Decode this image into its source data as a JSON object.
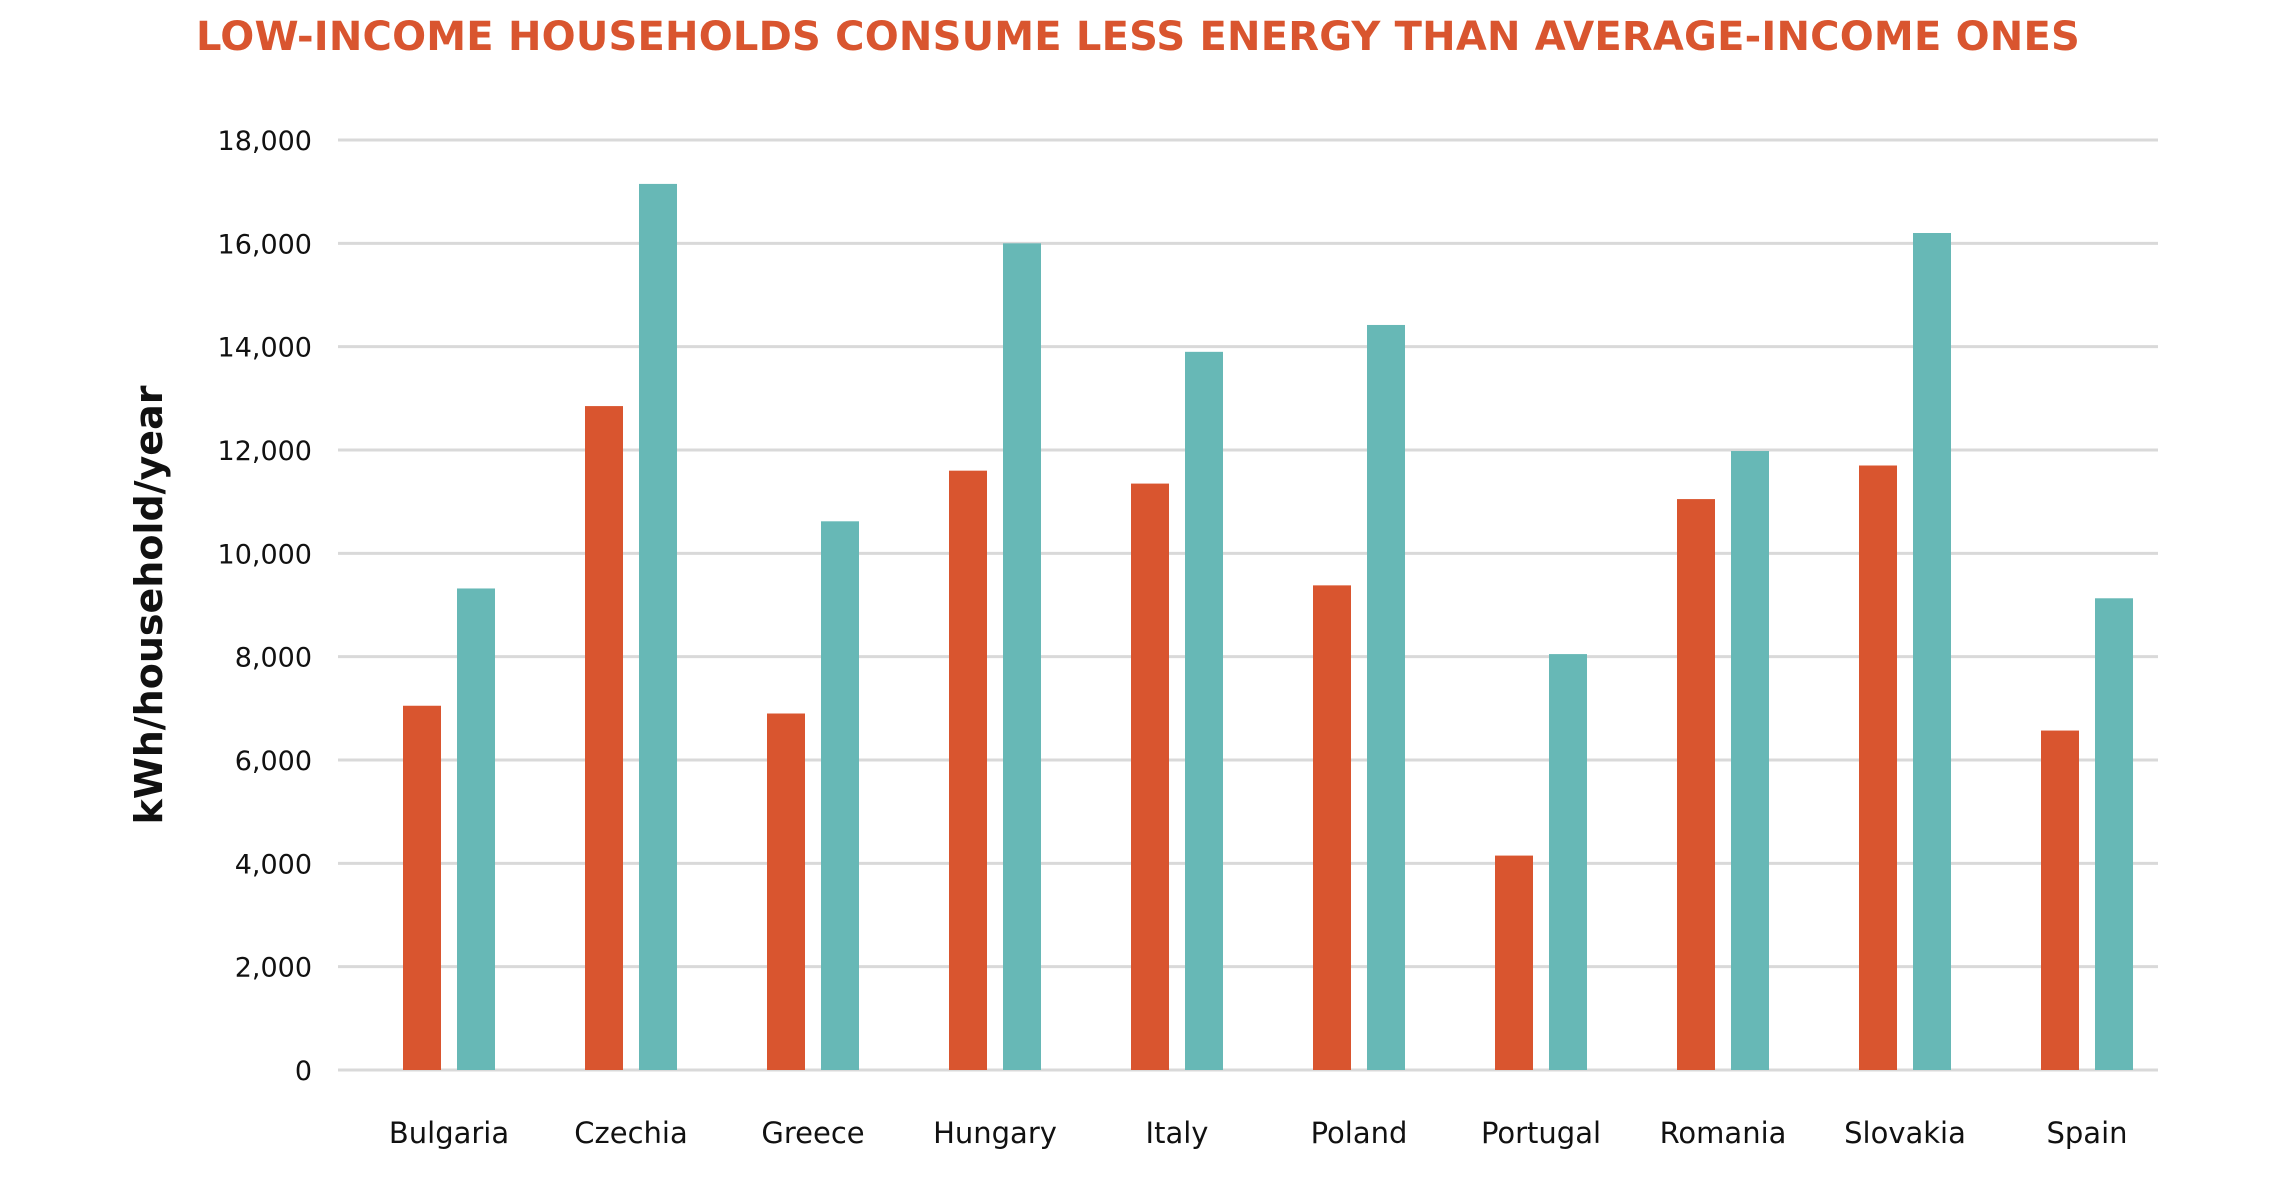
{
  "chart_data": {
    "type": "bar",
    "title": "LOW-INCOME HOUSEHOLDS CONSUME LESS ENERGY THAN AVERAGE-INCOME ONES",
    "xlabel": "",
    "ylabel": "kWh/household/year",
    "ylim": [
      0,
      18000
    ],
    "yticks": [
      0,
      2000,
      4000,
      6000,
      8000,
      10000,
      12000,
      14000,
      16000,
      18000
    ],
    "ytick_labels": [
      "0",
      "2,000",
      "4,000",
      "6,000",
      "8,000",
      "10,000",
      "12,000",
      "14,000",
      "16,000",
      "18,000"
    ],
    "grid": true,
    "legend": "none",
    "categories": [
      "Bulgaria",
      "Czechia",
      "Greece",
      "Hungary",
      "Italy",
      "Poland",
      "Portugal",
      "Romania",
      "Slovakia",
      "Spain"
    ],
    "series": [
      {
        "color": "#d9552f",
        "values": [
          7050,
          12850,
          6900,
          11600,
          11350,
          9380,
          4150,
          11050,
          11700,
          6570
        ]
      },
      {
        "color": "#67b8b6",
        "values": [
          9320,
          17150,
          10620,
          16000,
          13900,
          14420,
          8050,
          11980,
          16200,
          9130
        ]
      }
    ]
  }
}
